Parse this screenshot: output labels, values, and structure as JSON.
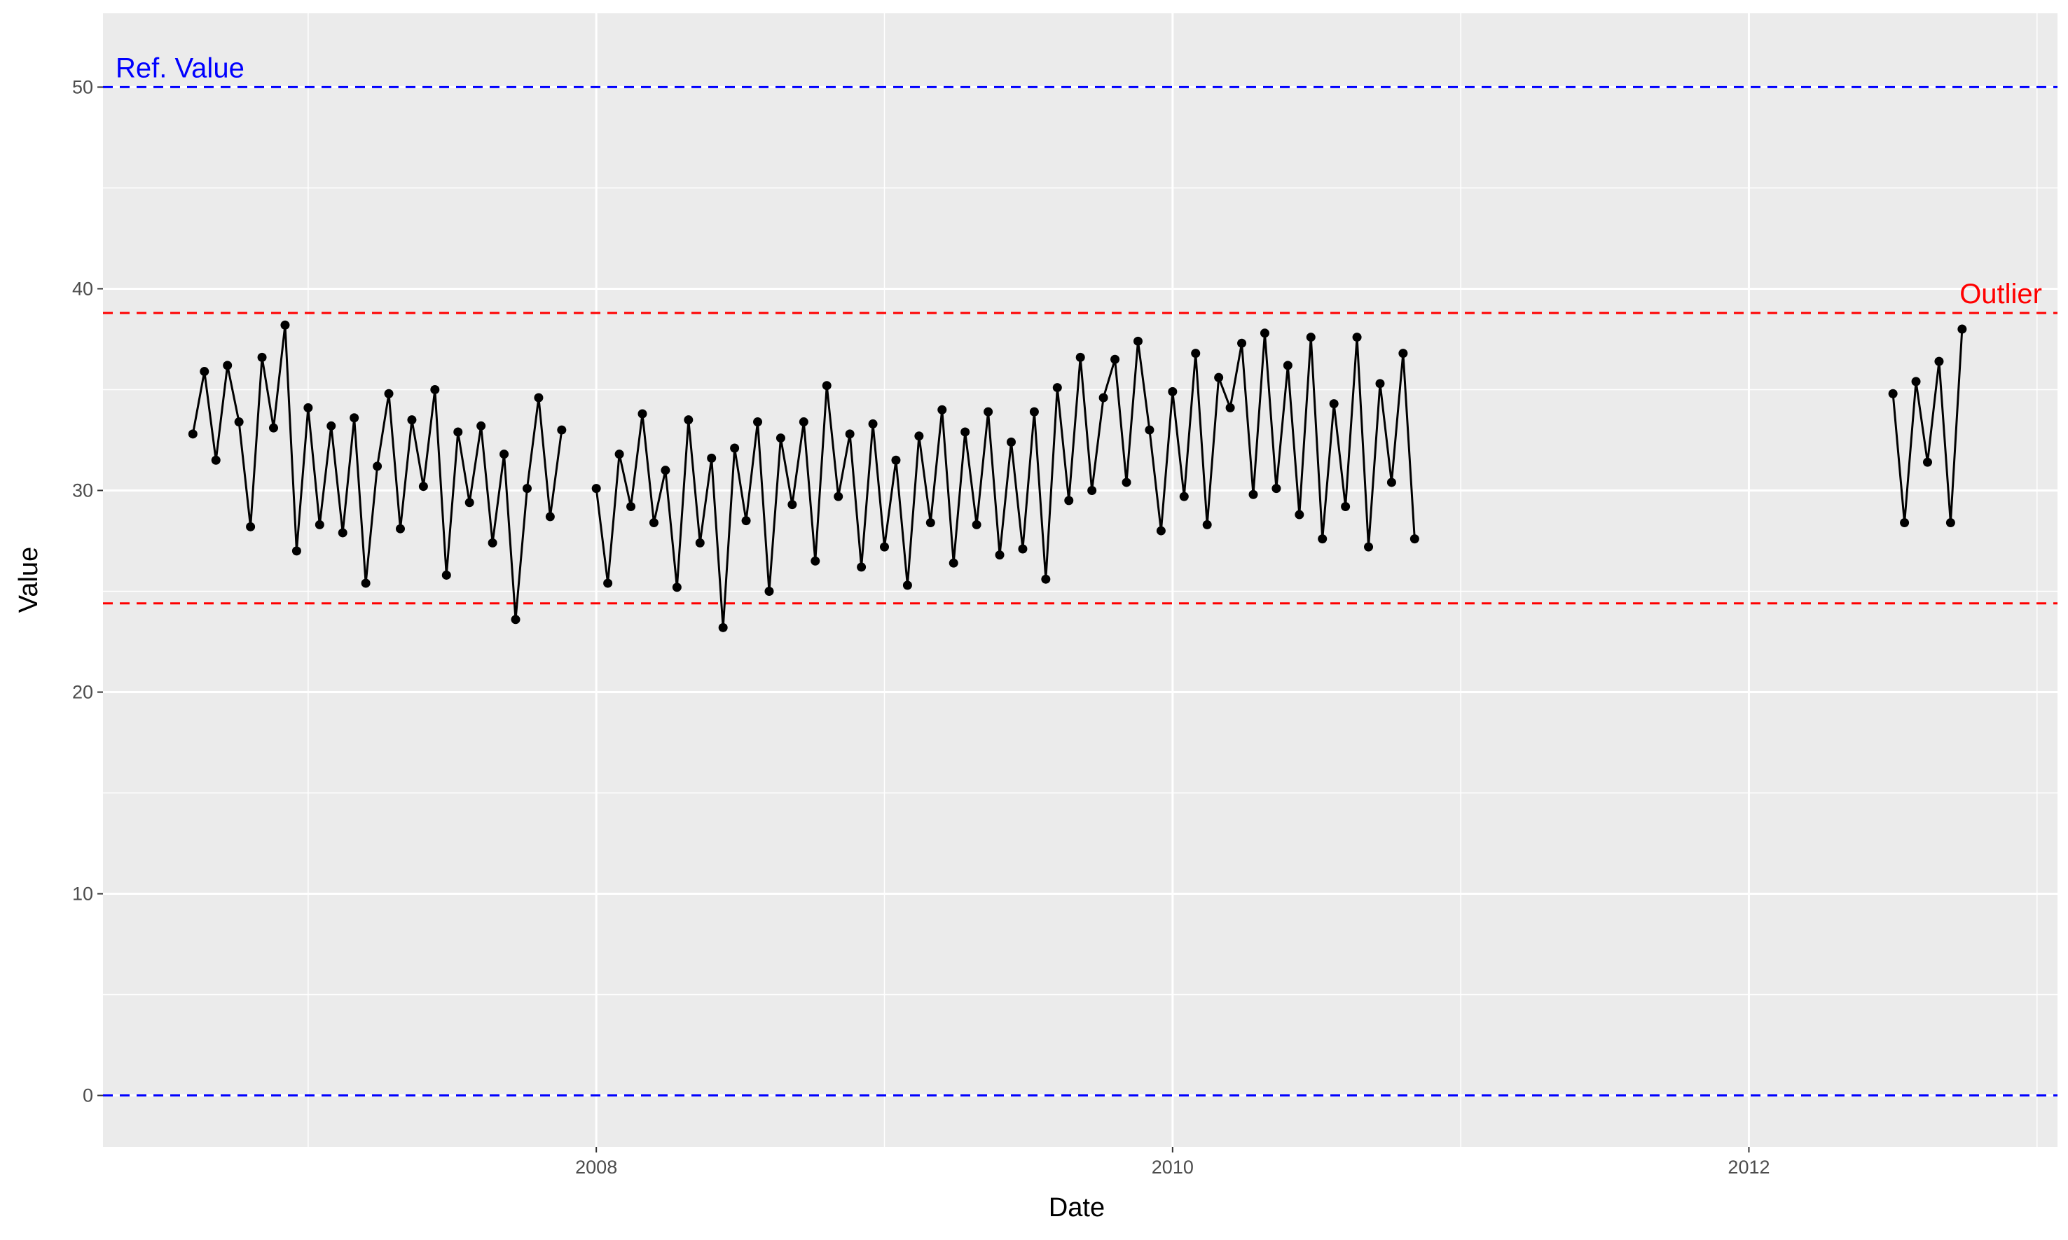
{
  "chart_data": {
    "type": "line",
    "x_label": "Date",
    "y_label": "Value",
    "xlim": [
      2006.288,
      2013.071
    ],
    "ylim": [
      -2.55,
      53.66
    ],
    "xticks": [
      2008,
      2010,
      2012
    ],
    "yticks": [
      0,
      10,
      20,
      30,
      40,
      50
    ],
    "x_minor_ticks": [
      2007,
      2009,
      2011,
      2013
    ],
    "y_minor_ticks": [
      5,
      15,
      25,
      35,
      45
    ],
    "grid": true,
    "hlines": [
      {
        "value": 50,
        "color": "#0000ff"
      },
      {
        "value": 0,
        "color": "#0000ff"
      },
      {
        "value": 38.8,
        "color": "#ff0000"
      },
      {
        "value": 24.4,
        "color": "#ff0000"
      }
    ],
    "annotations": [
      {
        "text": "Ref. Value",
        "color": "#0000ff"
      },
      {
        "text": "Outlier",
        "color": "#ff0000"
      }
    ],
    "series": [
      {
        "color": "#000000",
        "x": [
          2006.6,
          2006.64,
          2006.68,
          2006.72,
          2006.76,
          2006.8,
          2006.84,
          2006.88,
          2006.92,
          2006.96,
          2007.0,
          2007.04,
          2007.08,
          2007.12,
          2007.16,
          2007.2,
          2007.24,
          2007.28,
          2007.32,
          2007.36,
          2007.4,
          2007.44,
          2007.48,
          2007.52,
          2007.56,
          2007.6,
          2007.64,
          2007.68,
          2007.72,
          2007.76,
          2007.8,
          2007.84,
          2007.88,
          2007.94,
          2008.0,
          2008.04,
          2008.08,
          2008.12,
          2008.16,
          2008.2,
          2008.24,
          2008.28,
          2008.32,
          2008.36,
          2008.4,
          2008.44,
          2008.48,
          2008.52,
          2008.56,
          2008.6,
          2008.64,
          2008.68,
          2008.72,
          2008.76,
          2008.8,
          2008.84,
          2008.88,
          2008.92,
          2008.96,
          2009.0,
          2009.04,
          2009.08,
          2009.12,
          2009.16,
          2009.2,
          2009.24,
          2009.28,
          2009.32,
          2009.36,
          2009.4,
          2009.44,
          2009.48,
          2009.52,
          2009.56,
          2009.6,
          2009.64,
          2009.68,
          2009.72,
          2009.76,
          2009.8,
          2009.84,
          2009.88,
          2009.92,
          2009.96,
          2010.0,
          2010.04,
          2010.08,
          2010.12,
          2010.16,
          2010.2,
          2010.24,
          2010.28,
          2010.32,
          2010.36,
          2010.4,
          2010.44,
          2010.48,
          2010.52,
          2010.56,
          2010.6,
          2010.64,
          2010.68,
          2010.72,
          2010.76,
          2010.8,
          2010.84,
          2011.6,
          2012.5,
          2012.54,
          2012.58,
          2012.62,
          2012.66,
          2012.7,
          2012.74
        ],
        "values": [
          32.8,
          35.9,
          31.5,
          36.2,
          33.4,
          28.2,
          36.6,
          33.1,
          38.2,
          27.0,
          34.1,
          28.3,
          33.2,
          27.9,
          33.6,
          25.4,
          31.2,
          34.8,
          28.1,
          33.5,
          30.2,
          35.0,
          25.8,
          32.9,
          29.4,
          33.2,
          27.4,
          31.8,
          23.6,
          30.1,
          34.6,
          28.7,
          33.0,
          null,
          30.1,
          25.4,
          31.8,
          29.2,
          33.8,
          28.4,
          31.0,
          25.2,
          33.5,
          27.4,
          31.6,
          23.2,
          32.1,
          28.5,
          33.4,
          25.0,
          32.6,
          29.3,
          33.4,
          26.5,
          35.2,
          29.7,
          32.8,
          26.2,
          33.3,
          27.2,
          31.5,
          25.3,
          32.7,
          28.4,
          34.0,
          26.4,
          32.9,
          28.3,
          33.9,
          26.8,
          32.4,
          27.1,
          33.9,
          25.6,
          35.1,
          29.5,
          36.6,
          30.0,
          34.6,
          36.5,
          30.4,
          37.4,
          33.0,
          28.0,
          34.9,
          29.7,
          36.8,
          28.3,
          35.6,
          34.1,
          37.3,
          29.8,
          37.8,
          30.1,
          36.2,
          28.8,
          37.6,
          27.6,
          34.3,
          29.2,
          37.6,
          27.2,
          35.3,
          30.4,
          36.8,
          27.6,
          null,
          34.8,
          28.4,
          35.4,
          31.4,
          36.4,
          28.4,
          38.0
        ]
      }
    ]
  }
}
